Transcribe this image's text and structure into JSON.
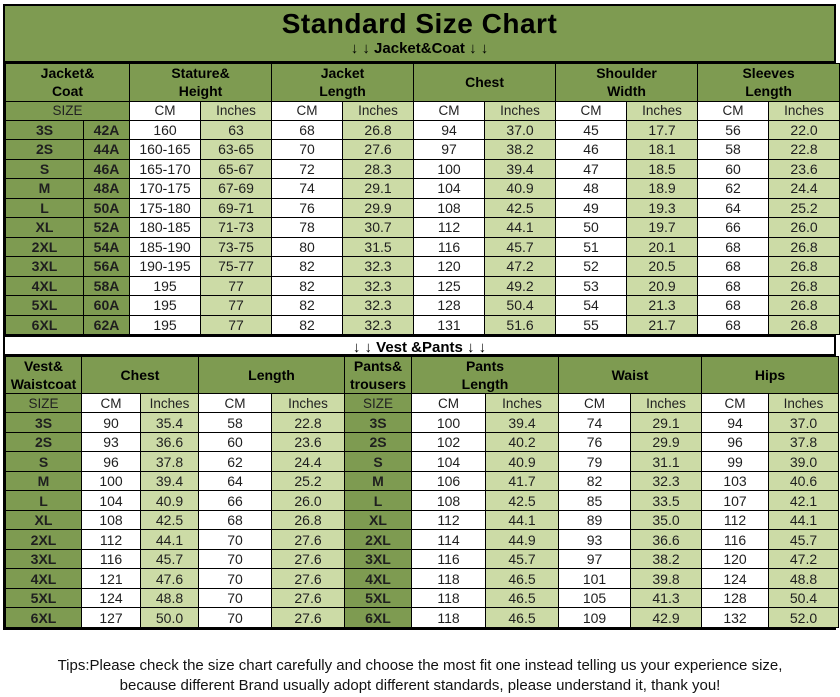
{
  "page": {
    "title": "Standard Size Chart",
    "jacket_banner": "↓ ↓  Jacket&Coat ↓ ↓",
    "vest_banner": "↓ ↓  Vest &Pants ↓ ↓",
    "tips_line1": "Tips:Please check the size chart carefully and choose the most fit one instead telling us your experience size,",
    "tips_line2": "because different Brand usually adopt different standards, please understand it, thank you!"
  },
  "units": {
    "size": "SIZE",
    "cm": "CM",
    "inches": "Inches"
  },
  "jacket_table": {
    "group_headers": [
      [
        "Jacket&",
        "Coat"
      ],
      [
        "Stature&",
        "Height"
      ],
      [
        "Jacket",
        "Length"
      ],
      [
        "Chest"
      ],
      [
        "Shoulder",
        "Width"
      ],
      [
        "Sleeves",
        "Length"
      ]
    ],
    "rows": [
      {
        "size": "3S",
        "size_code": "42A",
        "values": [
          "160",
          "63",
          "68",
          "26.8",
          "94",
          "37.0",
          "45",
          "17.7",
          "56",
          "22.0"
        ]
      },
      {
        "size": "2S",
        "size_code": "44A",
        "values": [
          "160-165",
          "63-65",
          "70",
          "27.6",
          "97",
          "38.2",
          "46",
          "18.1",
          "58",
          "22.8"
        ]
      },
      {
        "size": "S",
        "size_code": "46A",
        "values": [
          "165-170",
          "65-67",
          "72",
          "28.3",
          "100",
          "39.4",
          "47",
          "18.5",
          "60",
          "23.6"
        ]
      },
      {
        "size": "M",
        "size_code": "48A",
        "values": [
          "170-175",
          "67-69",
          "74",
          "29.1",
          "104",
          "40.9",
          "48",
          "18.9",
          "62",
          "24.4"
        ]
      },
      {
        "size": "L",
        "size_code": "50A",
        "values": [
          "175-180",
          "69-71",
          "76",
          "29.9",
          "108",
          "42.5",
          "49",
          "19.3",
          "64",
          "25.2"
        ]
      },
      {
        "size": "XL",
        "size_code": "52A",
        "values": [
          "180-185",
          "71-73",
          "78",
          "30.7",
          "112",
          "44.1",
          "50",
          "19.7",
          "66",
          "26.0"
        ]
      },
      {
        "size": "2XL",
        "size_code": "54A",
        "values": [
          "185-190",
          "73-75",
          "80",
          "31.5",
          "116",
          "45.7",
          "51",
          "20.1",
          "68",
          "26.8"
        ]
      },
      {
        "size": "3XL",
        "size_code": "56A",
        "values": [
          "190-195",
          "75-77",
          "82",
          "32.3",
          "120",
          "47.2",
          "52",
          "20.5",
          "68",
          "26.8"
        ]
      },
      {
        "size": "4XL",
        "size_code": "58A",
        "values": [
          "195",
          "77",
          "82",
          "32.3",
          "125",
          "49.2",
          "53",
          "20.9",
          "68",
          "26.8"
        ]
      },
      {
        "size": "5XL",
        "size_code": "60A",
        "values": [
          "195",
          "77",
          "82",
          "32.3",
          "128",
          "50.4",
          "54",
          "21.3",
          "68",
          "26.8"
        ]
      },
      {
        "size": "6XL",
        "size_code": "62A",
        "values": [
          "195",
          "77",
          "82",
          "32.3",
          "131",
          "51.6",
          "55",
          "21.7",
          "68",
          "26.8"
        ]
      }
    ]
  },
  "vest_table": {
    "group_headers": [
      [
        "Vest&",
        "Waistcoat"
      ],
      [
        "Chest"
      ],
      [
        "Length"
      ],
      [
        "Pants&",
        "trousers"
      ],
      [
        "Pants",
        "Length"
      ],
      [
        "Waist"
      ],
      [
        "Hips"
      ]
    ],
    "rows": [
      {
        "vest_size": "3S",
        "vest_values": [
          "90",
          "35.4",
          "58",
          "22.8"
        ],
        "pants_size": "3S",
        "pants_values": [
          "100",
          "39.4",
          "74",
          "29.1",
          "94",
          "37.0"
        ]
      },
      {
        "vest_size": "2S",
        "vest_values": [
          "93",
          "36.6",
          "60",
          "23.6"
        ],
        "pants_size": "2S",
        "pants_values": [
          "102",
          "40.2",
          "76",
          "29.9",
          "96",
          "37.8"
        ]
      },
      {
        "vest_size": "S",
        "vest_values": [
          "96",
          "37.8",
          "62",
          "24.4"
        ],
        "pants_size": "S",
        "pants_values": [
          "104",
          "40.9",
          "79",
          "31.1",
          "99",
          "39.0"
        ]
      },
      {
        "vest_size": "M",
        "vest_values": [
          "100",
          "39.4",
          "64",
          "25.2"
        ],
        "pants_size": "M",
        "pants_values": [
          "106",
          "41.7",
          "82",
          "32.3",
          "103",
          "40.6"
        ]
      },
      {
        "vest_size": "L",
        "vest_values": [
          "104",
          "40.9",
          "66",
          "26.0"
        ],
        "pants_size": "L",
        "pants_values": [
          "108",
          "42.5",
          "85",
          "33.5",
          "107",
          "42.1"
        ]
      },
      {
        "vest_size": "XL",
        "vest_values": [
          "108",
          "42.5",
          "68",
          "26.8"
        ],
        "pants_size": "XL",
        "pants_values": [
          "112",
          "44.1",
          "89",
          "35.0",
          "112",
          "44.1"
        ]
      },
      {
        "vest_size": "2XL",
        "vest_values": [
          "112",
          "44.1",
          "70",
          "27.6"
        ],
        "pants_size": "2XL",
        "pants_values": [
          "114",
          "44.9",
          "93",
          "36.6",
          "116",
          "45.7"
        ]
      },
      {
        "vest_size": "3XL",
        "vest_values": [
          "116",
          "45.7",
          "70",
          "27.6"
        ],
        "pants_size": "3XL",
        "pants_values": [
          "116",
          "45.7",
          "97",
          "38.2",
          "120",
          "47.2"
        ]
      },
      {
        "vest_size": "4XL",
        "vest_values": [
          "121",
          "47.6",
          "70",
          "27.6"
        ],
        "pants_size": "4XL",
        "pants_values": [
          "118",
          "46.5",
          "101",
          "39.8",
          "124",
          "48.8"
        ]
      },
      {
        "vest_size": "5XL",
        "vest_values": [
          "124",
          "48.8",
          "70",
          "27.6"
        ],
        "pants_size": "5XL",
        "pants_values": [
          "118",
          "46.5",
          "105",
          "41.3",
          "128",
          "50.4"
        ]
      },
      {
        "vest_size": "6XL",
        "vest_values": [
          "127",
          "50.0",
          "70",
          "27.6"
        ],
        "pants_size": "6XL",
        "pants_values": [
          "118",
          "46.5",
          "109",
          "42.9",
          "132",
          "52.0"
        ]
      }
    ]
  },
  "colors": {
    "olive": "#7E9B51",
    "light": "#CCDBA6",
    "border": "#000000",
    "background": "#FFFFFF"
  }
}
